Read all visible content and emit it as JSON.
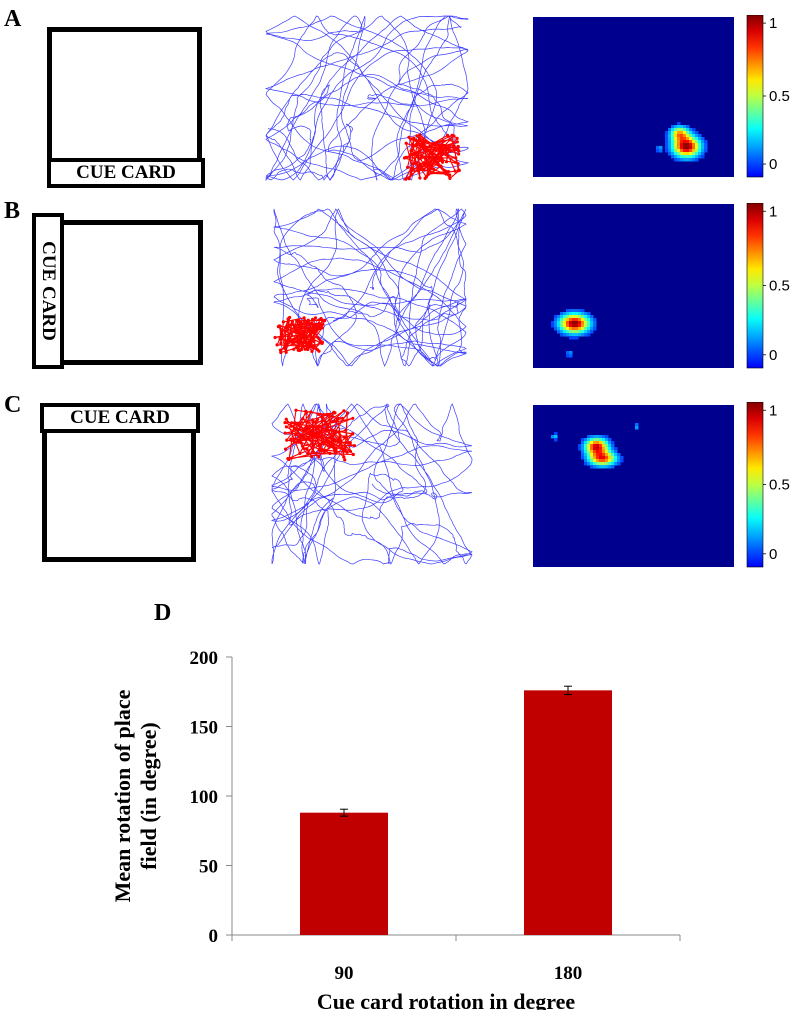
{
  "panels": {
    "A": {
      "label": "A",
      "cue_text": "CUE CARD",
      "cue_position": "bottom"
    },
    "B": {
      "label": "B",
      "cue_text": "CUE CARD",
      "cue_position": "left"
    },
    "C": {
      "label": "C",
      "cue_text": "CUE CARD",
      "cue_position": "top"
    },
    "D": {
      "label": "D"
    }
  },
  "colorbar": {
    "ticks": [
      "1",
      "0.5",
      "0"
    ]
  },
  "place_field_location": {
    "A": "bottom-right",
    "B": "bottom-left",
    "C": "top-left"
  },
  "colors": {
    "trajectory": "#1a1aff",
    "spikes": "#ff0000",
    "bar": "#c00000",
    "heatmap_background": "#00008f"
  },
  "chart_data": {
    "type": "bar",
    "categories": [
      "90",
      "180"
    ],
    "values": [
      88,
      176
    ],
    "errors": [
      2.5,
      3
    ],
    "xlabel": "Cue card rotation in degree",
    "ylabel": "Mean rotation of place field (in degree)",
    "ylabel_lines": [
      "Mean rotation of place",
      "field (in degree)"
    ],
    "ylim": [
      0,
      200
    ],
    "yticks": [
      "0",
      "50",
      "100",
      "150",
      "200"
    ],
    "grid": false
  }
}
